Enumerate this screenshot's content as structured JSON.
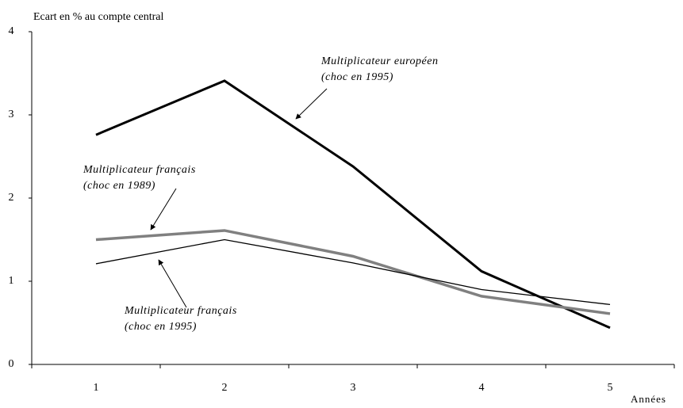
{
  "chart_data": {
    "type": "line",
    "y_axis_label": "Ecart en % au compte central",
    "x_axis_label": "Années",
    "categories": [
      "1",
      "2",
      "3",
      "4",
      "5"
    ],
    "series": [
      {
        "color": "#000000",
        "width": 3,
        "values": [
          2.76,
          3.41,
          2.38,
          1.12,
          0.44
        ]
      },
      {
        "color": "#808080",
        "width": 3.5,
        "values": [
          1.5,
          1.61,
          1.3,
          0.82,
          0.61
        ]
      },
      {
        "color": "#000000",
        "width": 1.3,
        "values": [
          1.21,
          1.5,
          1.22,
          0.9,
          0.72
        ]
      }
    ],
    "annotations": [
      {
        "lines": [
          "Multiplicateur européen",
          "(choc en 1995)"
        ]
      },
      {
        "lines": [
          "Multiplicateur français",
          "(choc en 1989)"
        ]
      },
      {
        "lines": [
          "Multiplicateur français",
          "(choc en 1995)"
        ]
      }
    ],
    "ylim": [
      0,
      4
    ],
    "yticks": [
      0,
      1,
      2,
      3,
      4
    ],
    "grid": false
  }
}
